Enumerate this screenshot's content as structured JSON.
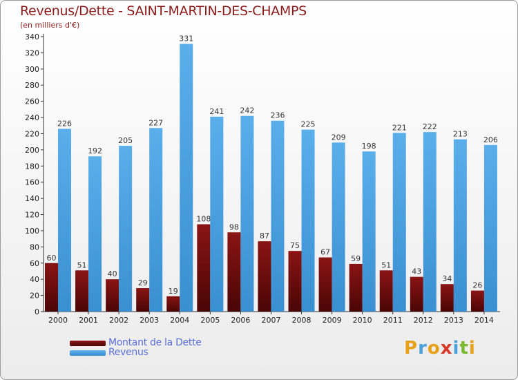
{
  "title": "Revenus/Dette - SAINT-MARTIN-DES-CHAMPS",
  "subtitle": "(en milliers d'€)",
  "logo": {
    "letters": [
      "P",
      "r",
      "o",
      "x",
      "i",
      "t",
      "i"
    ],
    "colors": [
      "#e8a21a",
      "#4aa0d8",
      "#e8a21a",
      "#d83a2a",
      "#4aa0d8",
      "#7ab830",
      "#e8a21a"
    ]
  },
  "chart_data": {
    "type": "bar",
    "title": "Revenus/Dette - SAINT-MARTIN-DES-CHAMPS",
    "subtitle": "(en milliers d'€)",
    "categories": [
      "2000",
      "2001",
      "2002",
      "2003",
      "2004",
      "2005",
      "2006",
      "2007",
      "2008",
      "2009",
      "2010",
      "2011",
      "2012",
      "2013",
      "2014"
    ],
    "series": [
      {
        "name": "Montant de la Dette",
        "color": "#7a0c0c",
        "values": [
          60,
          51,
          40,
          29,
          19,
          108,
          98,
          87,
          75,
          67,
          59,
          51,
          43,
          34,
          26
        ]
      },
      {
        "name": "Revenus",
        "color": "#4fa6e6",
        "values": [
          226,
          192,
          205,
          227,
          331,
          241,
          242,
          236,
          225,
          209,
          198,
          221,
          222,
          213,
          206
        ]
      }
    ],
    "yticks": [
      0,
      20,
      40,
      60,
      80,
      100,
      120,
      140,
      160,
      180,
      200,
      220,
      240,
      260,
      280,
      300,
      320,
      340
    ],
    "ylim": [
      0,
      340
    ],
    "grid": false,
    "legend_position": "bottom-left"
  }
}
